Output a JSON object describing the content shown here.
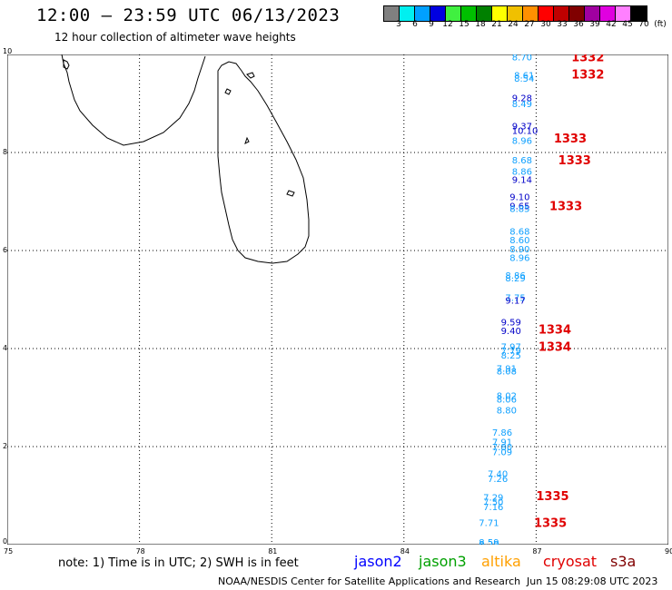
{
  "header": {
    "title": "12:00 – 23:59 UTC 06/13/2023",
    "subtitle": "12 hour collection of altimeter wave heights"
  },
  "colorbar": {
    "colors": [
      "#808080",
      "#00f0f0",
      "#00a0ff",
      "#0000e0",
      "#40f040",
      "#00c000",
      "#008000",
      "#ffff00",
      "#f0c000",
      "#ff9000",
      "#ff0000",
      "#c00000",
      "#800000",
      "#a000a0",
      "#e000e0",
      "#ff80ff",
      "#000000"
    ],
    "labels": [
      "3",
      "6",
      "9",
      "12",
      "15",
      "18",
      "21",
      "24",
      "27",
      "30",
      "33",
      "36",
      "39",
      "42",
      "45",
      "70",
      "(ft)"
    ]
  },
  "map": {
    "x_ticks": [
      "75",
      "78",
      "81",
      "84",
      "87",
      "90"
    ],
    "y_ticks": [
      "0",
      "2",
      "4",
      "6",
      "8",
      "10"
    ],
    "x_range": [
      75,
      90
    ],
    "y_range": [
      0,
      10
    ]
  },
  "chart_data": {
    "type": "scatter",
    "xlabel": "",
    "ylabel": "",
    "xlim": [
      75,
      90
    ],
    "ylim": [
      0,
      10
    ],
    "swh_points": [
      {
        "x": 86.45,
        "y": 9.95,
        "value": "8.70",
        "color": "#0fa0ff"
      },
      {
        "x": 86.5,
        "y": 9.58,
        "value": "8.61",
        "color": "#0fa0ff"
      },
      {
        "x": 86.5,
        "y": 9.52,
        "value": "8.54",
        "color": "#0fa0ff"
      },
      {
        "x": 86.45,
        "y": 9.12,
        "value": "9.28",
        "color": "#0000c8"
      },
      {
        "x": 86.45,
        "y": 9.0,
        "value": "8.49",
        "color": "#0fa0ff"
      },
      {
        "x": 86.45,
        "y": 8.55,
        "value": "9.37",
        "color": "#0000c8"
      },
      {
        "x": 86.45,
        "y": 8.45,
        "value": "10.10",
        "color": "#0000c8"
      },
      {
        "x": 86.45,
        "y": 8.25,
        "value": "8.96",
        "color": "#0fa0ff"
      },
      {
        "x": 86.45,
        "y": 7.85,
        "value": "8.68",
        "color": "#0fa0ff"
      },
      {
        "x": 86.45,
        "y": 7.62,
        "value": "8.86",
        "color": "#0fa0ff"
      },
      {
        "x": 86.45,
        "y": 7.45,
        "value": "9.14",
        "color": "#0000c8"
      },
      {
        "x": 86.4,
        "y": 7.1,
        "value": "9.10",
        "color": "#0000c8"
      },
      {
        "x": 86.4,
        "y": 6.92,
        "value": "9.65",
        "color": "#0000c8"
      },
      {
        "x": 86.4,
        "y": 6.86,
        "value": "8.85",
        "color": "#0fa0ff"
      },
      {
        "x": 86.4,
        "y": 6.4,
        "value": "8.68",
        "color": "#0fa0ff"
      },
      {
        "x": 86.4,
        "y": 6.22,
        "value": "8.60",
        "color": "#0fa0ff"
      },
      {
        "x": 86.4,
        "y": 6.04,
        "value": "8.90",
        "color": "#0fa0ff"
      },
      {
        "x": 86.4,
        "y": 5.86,
        "value": "8.96",
        "color": "#0fa0ff"
      },
      {
        "x": 86.3,
        "y": 5.5,
        "value": "8.86",
        "color": "#0fa0ff"
      },
      {
        "x": 86.3,
        "y": 5.44,
        "value": "8.29",
        "color": "#0fa0ff"
      },
      {
        "x": 86.3,
        "y": 5.05,
        "value": "7.75",
        "color": "#0fa0ff"
      },
      {
        "x": 86.3,
        "y": 4.99,
        "value": "9.17",
        "color": "#0000c8"
      },
      {
        "x": 86.2,
        "y": 4.55,
        "value": "9.59",
        "color": "#0000c8"
      },
      {
        "x": 86.2,
        "y": 4.37,
        "value": "9.40",
        "color": "#0000c8"
      },
      {
        "x": 86.2,
        "y": 4.05,
        "value": "7.97",
        "color": "#0fa0ff"
      },
      {
        "x": 86.2,
        "y": 3.96,
        "value": "7.79",
        "color": "#0fa0ff"
      },
      {
        "x": 86.2,
        "y": 3.87,
        "value": "8.25",
        "color": "#0fa0ff"
      },
      {
        "x": 86.1,
        "y": 3.6,
        "value": "7.91",
        "color": "#0fa0ff"
      },
      {
        "x": 86.1,
        "y": 3.55,
        "value": "8.08",
        "color": "#0fa0ff"
      },
      {
        "x": 86.1,
        "y": 3.05,
        "value": "8.02",
        "color": "#0fa0ff"
      },
      {
        "x": 86.1,
        "y": 2.97,
        "value": "8.06",
        "color": "#0fa0ff"
      },
      {
        "x": 86.1,
        "y": 2.75,
        "value": "8.80",
        "color": "#0fa0ff"
      },
      {
        "x": 86.0,
        "y": 2.3,
        "value": "7.86",
        "color": "#0fa0ff"
      },
      {
        "x": 86.0,
        "y": 2.1,
        "value": "7.91",
        "color": "#0fa0ff"
      },
      {
        "x": 86.0,
        "y": 2.0,
        "value": "7.80",
        "color": "#0fa0ff"
      },
      {
        "x": 86.0,
        "y": 1.9,
        "value": "7.09",
        "color": "#0fa0ff"
      },
      {
        "x": 85.9,
        "y": 1.45,
        "value": "7.40",
        "color": "#0fa0ff"
      },
      {
        "x": 85.9,
        "y": 1.35,
        "value": "7.26",
        "color": "#0fa0ff"
      },
      {
        "x": 85.8,
        "y": 0.97,
        "value": "7.29",
        "color": "#0fa0ff"
      },
      {
        "x": 85.8,
        "y": 0.88,
        "value": "7.50",
        "color": "#0fa0ff"
      },
      {
        "x": 85.8,
        "y": 0.78,
        "value": "7.16",
        "color": "#0fa0ff"
      },
      {
        "x": 85.7,
        "y": 0.45,
        "value": "7.71",
        "color": "#0fa0ff"
      },
      {
        "x": 85.7,
        "y": 0.06,
        "value": "8.59",
        "color": "#0fa0ff"
      },
      {
        "x": 85.7,
        "y": 0.02,
        "value": "8.29",
        "color": "#0fa0ff"
      }
    ],
    "time_labels": [
      {
        "x": 87.8,
        "y": 9.95,
        "value": "1332"
      },
      {
        "x": 87.8,
        "y": 9.6,
        "value": "1332"
      },
      {
        "x": 87.4,
        "y": 8.3,
        "value": "1333"
      },
      {
        "x": 87.5,
        "y": 7.85,
        "value": "1333"
      },
      {
        "x": 87.3,
        "y": 6.92,
        "value": "1333"
      },
      {
        "x": 87.05,
        "y": 4.4,
        "value": "1334"
      },
      {
        "x": 87.05,
        "y": 4.05,
        "value": "1334"
      },
      {
        "x": 87.0,
        "y": 1.0,
        "value": "1335"
      },
      {
        "x": 86.95,
        "y": 0.45,
        "value": "1335"
      }
    ]
  },
  "footer": {
    "note": "note:  1) Time is in UTC;  2) SWH is in feet",
    "legend": [
      {
        "label": "jason2",
        "color": "#0000ff"
      },
      {
        "label": "jason3",
        "color": "#00a000"
      },
      {
        "label": "altika",
        "color": "#ffa000"
      },
      {
        "label": "cryosat",
        "color": "#e00000"
      },
      {
        "label": "s3a",
        "color": "#800000"
      }
    ],
    "credit": "NOAA/NESDIS Center for Satellite Applications and Research",
    "timestamp": "Jun 15 08:29:08 UTC 2023"
  }
}
